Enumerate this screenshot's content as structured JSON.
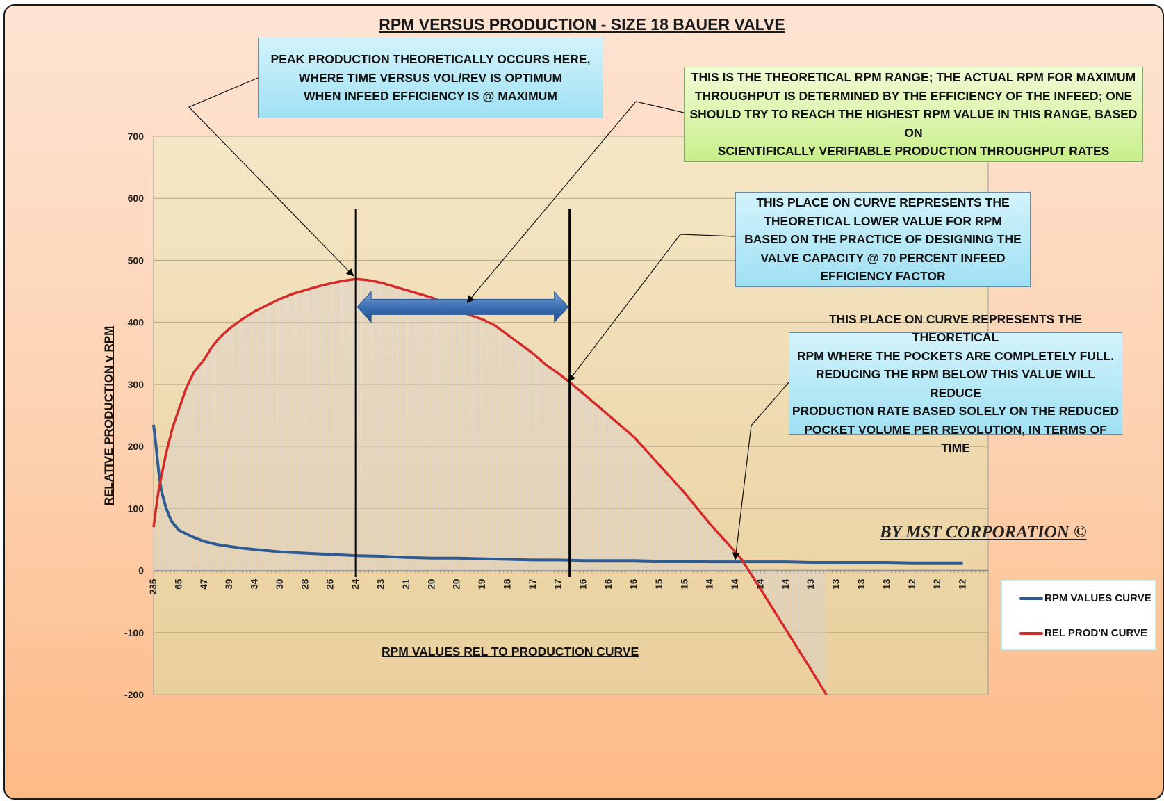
{
  "chart_data": {
    "type": "line",
    "title": "RPM VERSUS PRODUCTION - SIZE 18 BAUER VALVE",
    "xlabel": "RPM VALUES REL TO PRODUCTION CURVE",
    "ylabel": "RELATIVE PRODUCTION v RPM",
    "ylim": [
      -200,
      700
    ],
    "yticks": [
      700,
      600,
      500,
      400,
      300,
      200,
      100,
      0,
      -100,
      -200
    ],
    "x_tick_labels": [
      "235",
      "65",
      "47",
      "39",
      "34",
      "30",
      "28",
      "26",
      "24",
      "23",
      "21",
      "20",
      "20",
      "19",
      "18",
      "17",
      "17",
      "16",
      "16",
      "16",
      "15",
      "15",
      "14",
      "14",
      "14",
      "14",
      "13",
      "13",
      "13",
      "13",
      "12",
      "12",
      "12"
    ],
    "grid": true,
    "legend_position": "right",
    "colors": {
      "rpm": "#2e5b93",
      "prod": "#d42a2a",
      "arrow": "#3d6fb3"
    },
    "series": [
      {
        "name": "RPM VALUES CURVE",
        "color": "#2e5b93",
        "points": [
          [
            0,
            235
          ],
          [
            0.1,
            200
          ],
          [
            0.2,
            160
          ],
          [
            0.3,
            130
          ],
          [
            0.5,
            100
          ],
          [
            0.7,
            80
          ],
          [
            1,
            65
          ],
          [
            1.5,
            55
          ],
          [
            2,
            47
          ],
          [
            2.5,
            42
          ],
          [
            3,
            39
          ],
          [
            3.5,
            36
          ],
          [
            4,
            34
          ],
          [
            5,
            30
          ],
          [
            6,
            28
          ],
          [
            7,
            26
          ],
          [
            8,
            24
          ],
          [
            9,
            23
          ],
          [
            10,
            21
          ],
          [
            11,
            20
          ],
          [
            12,
            20
          ],
          [
            13,
            19
          ],
          [
            14,
            18
          ],
          [
            15,
            17
          ],
          [
            16,
            17
          ],
          [
            17,
            16
          ],
          [
            18,
            16
          ],
          [
            19,
            16
          ],
          [
            20,
            15
          ],
          [
            21,
            15
          ],
          [
            22,
            14
          ],
          [
            23,
            14
          ],
          [
            24,
            14
          ],
          [
            25,
            14
          ],
          [
            26,
            13
          ],
          [
            27,
            13
          ],
          [
            28,
            13
          ],
          [
            29,
            13
          ],
          [
            30,
            12
          ],
          [
            31,
            12
          ],
          [
            32,
            12
          ]
        ]
      },
      {
        "name": "REL PROD'N CURVE",
        "color": "#d42a2a",
        "points": [
          [
            0,
            70
          ],
          [
            0.1,
            100
          ],
          [
            0.2,
            130
          ],
          [
            0.35,
            160
          ],
          [
            0.5,
            190
          ],
          [
            0.75,
            230
          ],
          [
            1,
            260
          ],
          [
            1.3,
            295
          ],
          [
            1.6,
            320
          ],
          [
            2,
            340
          ],
          [
            2.3,
            360
          ],
          [
            2.6,
            375
          ],
          [
            3,
            390
          ],
          [
            3.5,
            405
          ],
          [
            4,
            418
          ],
          [
            4.5,
            428
          ],
          [
            5,
            438
          ],
          [
            5.5,
            446
          ],
          [
            6,
            452
          ],
          [
            6.5,
            458
          ],
          [
            7,
            463
          ],
          [
            7.5,
            467
          ],
          [
            8,
            470
          ],
          [
            8.5,
            468
          ],
          [
            9,
            464
          ],
          [
            9.5,
            458
          ],
          [
            10,
            452
          ],
          [
            10.5,
            446
          ],
          [
            11,
            440
          ],
          [
            11.5,
            432
          ],
          [
            12,
            420
          ],
          [
            12.5,
            412
          ],
          [
            13,
            405
          ],
          [
            13.5,
            395
          ],
          [
            14,
            380
          ],
          [
            14.5,
            365
          ],
          [
            15,
            350
          ],
          [
            15.5,
            332
          ],
          [
            16,
            318
          ],
          [
            16.5,
            302
          ],
          [
            17,
            285
          ],
          [
            18,
            250
          ],
          [
            19,
            215
          ],
          [
            20,
            170
          ],
          [
            21,
            125
          ],
          [
            22,
            75
          ],
          [
            23,
            30
          ],
          [
            23.25,
            18
          ],
          [
            24,
            -30
          ],
          [
            25,
            -95
          ],
          [
            26,
            -160
          ],
          [
            26.6,
            -200
          ]
        ]
      }
    ],
    "annotations": [
      {
        "text": "PEAK PRODUCTION THEORETICALLY OCCURS HERE,\nWHERE TIME VERSUS VOL/REV IS OPTIMUM\nWHEN INFEED EFFICIENCY IS @ MAXIMUM",
        "target": [
          7.9,
          475
        ]
      },
      {
        "text": "THIS IS THE THEORETICAL RPM RANGE; THE ACTUAL RPM FOR MAXIMUM\nTHROUGHPUT IS DETERMINED BY THE EFFICIENCY OF THE INFEED; ONE\nSHOULD  TRY TO REACH THE HIGHEST RPM VALUE IN THIS RANGE, BASED ON\nSCIENTIFICALLY VERIFIABLE PRODUCTION THROUGHPUT RATES",
        "target": [
          12.4,
          432
        ]
      },
      {
        "text": "THIS PLACE ON CURVE REPRESENTS THE\nTHEORETICAL LOWER VALUE FOR RPM\nBASED ON THE PRACTICE OF DESIGNING THE\nVALVE CAPACITY @ 70 PERCENT INFEED\nEFFICIENCY FACTOR",
        "target": [
          16.4,
          305
        ]
      },
      {
        "text": "THIS PLACE ON CURVE REPRESENTS THE THEORETICAL\nRPM WHERE THE POCKETS ARE COMPLETELY FULL.\nREDUCING THE RPM BELOW THIS VALUE WILL REDUCE\nPRODUCTION RATE BASED SOLELY ON THE REDUCED\nPOCKET  VOLUME PER REVOLUTION, IN TERMS OF TIME",
        "target": [
          23,
          18
        ]
      }
    ],
    "range_markers_x": [
      8,
      16.45
    ],
    "range_arrow": {
      "x_from": 8,
      "x_to": 16.45,
      "y": 425
    }
  },
  "credit": "BY MST CORPORATION ©"
}
